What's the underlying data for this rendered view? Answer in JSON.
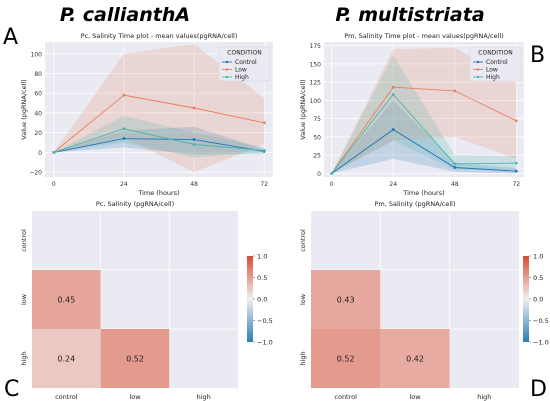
{
  "headers": {
    "left": "P. callianthA",
    "right": "P. multistriata"
  },
  "panel_letters": [
    "A",
    "B",
    "C",
    "D"
  ],
  "colors": {
    "plot_bg": "#eaeaf2",
    "grid": "#ffffff",
    "control": "#1f77b4",
    "low": "#e8805f",
    "high": "#4db6ac",
    "cbar_neg": "#2a7db4",
    "cbar_mid": "#f2efef",
    "cbar_pos": "#d94c35"
  },
  "chart_data": [
    {
      "type": "line",
      "title": "Pc, Salinity Time plot - mean values(pgRNA/cell)",
      "xlabel": "Time (hours)",
      "ylabel": "Value (pgRNA/cell)",
      "x": [
        0,
        24,
        48,
        72
      ],
      "xticks": [
        "0",
        "24",
        "48",
        "72"
      ],
      "yticks": [
        "−20",
        "0",
        "20",
        "40",
        "60",
        "80",
        "100"
      ],
      "ytick_values": [
        -20,
        0,
        20,
        40,
        60,
        80,
        100
      ],
      "ylim": [
        -25,
        112
      ],
      "xlim": [
        -3,
        75
      ],
      "legend_title": "CONDITION",
      "legend_position": "top-right",
      "grid": true,
      "series": [
        {
          "name": "Control",
          "color_key": "control",
          "values": [
            0,
            14,
            13,
            1
          ],
          "band_low": [
            0,
            5,
            -2,
            -1
          ],
          "band_high": [
            0,
            22,
            26,
            3
          ]
        },
        {
          "name": "Low",
          "color_key": "low",
          "values": [
            0,
            58,
            45,
            30
          ],
          "band_low": [
            0,
            15,
            -20,
            8
          ],
          "band_high": [
            0,
            100,
            110,
            55
          ]
        },
        {
          "name": "High",
          "color_key": "high",
          "values": [
            0,
            24,
            8,
            2
          ],
          "band_low": [
            0,
            10,
            -5,
            0
          ],
          "band_high": [
            0,
            37,
            20,
            5
          ]
        }
      ]
    },
    {
      "type": "line",
      "title": "Pm, Salinity Time plot - mean values(pgRNA/cell)",
      "xlabel": "Time (hours)",
      "ylabel": "Value (pgRNA/cell)",
      "x": [
        0,
        24,
        48,
        72
      ],
      "xticks": [
        "0",
        "24",
        "48",
        "72"
      ],
      "yticks": [
        "0",
        "25",
        "50",
        "75",
        "100",
        "125",
        "150",
        "175"
      ],
      "ytick_values": [
        0,
        25,
        50,
        75,
        100,
        125,
        150,
        175
      ],
      "ylim": [
        -5,
        180
      ],
      "xlim": [
        -3,
        75
      ],
      "legend_title": "CONDITION",
      "legend_position": "top-right",
      "grid": true,
      "series": [
        {
          "name": "Control",
          "color_key": "control",
          "values": [
            0,
            60,
            8,
            3
          ],
          "band_low": [
            0,
            20,
            2,
            0
          ],
          "band_high": [
            0,
            100,
            15,
            7
          ]
        },
        {
          "name": "Low",
          "color_key": "low",
          "values": [
            0,
            118,
            113,
            72
          ],
          "band_low": [
            0,
            45,
            50,
            20
          ],
          "band_high": [
            0,
            170,
            172,
            125
          ]
        },
        {
          "name": "High",
          "color_key": "high",
          "values": [
            0,
            108,
            13,
            14
          ],
          "band_low": [
            0,
            45,
            5,
            5
          ],
          "band_high": [
            0,
            162,
            25,
            24
          ]
        }
      ]
    },
    {
      "type": "heatmap",
      "title": "Pc, Salinity (pgRNA/cell)",
      "categories": [
        "control",
        "low",
        "high"
      ],
      "cells": [
        {
          "row": 1,
          "col": 0,
          "value": 0.45,
          "label": "0.45"
        },
        {
          "row": 2,
          "col": 0,
          "value": 0.24,
          "label": "0.24"
        },
        {
          "row": 2,
          "col": 1,
          "value": 0.52,
          "label": "0.52"
        }
      ],
      "colorbar_ticks": [
        "1.0",
        "0.5",
        "0.0",
        "−0.5",
        "−1.0"
      ],
      "colorbar_values": [
        1.0,
        0.5,
        0.0,
        -0.5,
        -1.0
      ],
      "vmin": -1.0,
      "vmax": 1.0
    },
    {
      "type": "heatmap",
      "title": "Pm, Salinity (pgRNA/cell)",
      "categories": [
        "control",
        "low",
        "high"
      ],
      "cells": [
        {
          "row": 1,
          "col": 0,
          "value": 0.43,
          "label": "0.43"
        },
        {
          "row": 2,
          "col": 0,
          "value": 0.52,
          "label": "0.52"
        },
        {
          "row": 2,
          "col": 1,
          "value": 0.42,
          "label": "0.42"
        }
      ],
      "colorbar_ticks": [
        "1.0",
        "0.5",
        "0.0",
        "−0.5",
        "−1.0"
      ],
      "colorbar_values": [
        1.0,
        0.5,
        0.0,
        -0.5,
        -1.0
      ],
      "vmin": -1.0,
      "vmax": 1.0
    }
  ]
}
